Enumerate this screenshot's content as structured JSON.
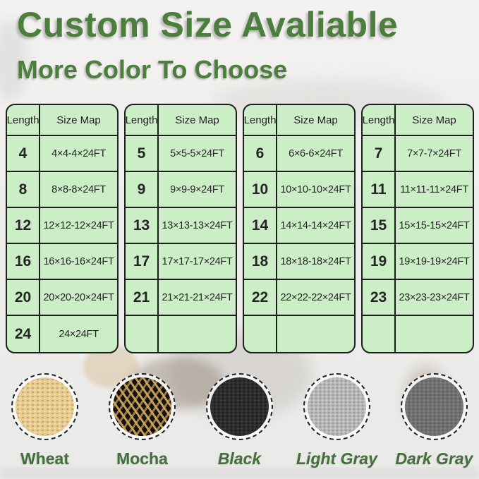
{
  "header": {
    "title": "Custom Size Avaliable",
    "subtitle": "More Color To Choose"
  },
  "accent_color": "#4c7f3e",
  "table_style": {
    "background": "#cbeec6",
    "border": "#1e1e1e"
  },
  "tables": [
    {
      "columns": [
        "Length",
        "Size Map"
      ],
      "rows": [
        {
          "len": "4",
          "size": "4×4-4×24FT"
        },
        {
          "len": "8",
          "size": "8×8-8×24FT"
        },
        {
          "len": "12",
          "size": "12×12-12×24FT"
        },
        {
          "len": "16",
          "size": "16×16-16×24FT"
        },
        {
          "len": "20",
          "size": "20×20-20×24FT"
        },
        {
          "len": "24",
          "size": "24×24FT"
        }
      ]
    },
    {
      "columns": [
        "Length",
        "Size Map"
      ],
      "rows": [
        {
          "len": "5",
          "size": "5×5-5×24FT"
        },
        {
          "len": "9",
          "size": "9×9-9×24FT"
        },
        {
          "len": "13",
          "size": "13×13-13×24FT"
        },
        {
          "len": "17",
          "size": "17×17-17×24FT"
        },
        {
          "len": "21",
          "size": "21×21-21×24FT"
        },
        {
          "len": "",
          "size": ""
        }
      ]
    },
    {
      "columns": [
        "Length",
        "Size Map"
      ],
      "rows": [
        {
          "len": "6",
          "size": "6×6-6×24FT"
        },
        {
          "len": "10",
          "size": "10×10-10×24FT"
        },
        {
          "len": "14",
          "size": "14×14-14×24FT"
        },
        {
          "len": "18",
          "size": "18×18-18×24FT"
        },
        {
          "len": "22",
          "size": "22×22-22×24FT"
        },
        {
          "len": "",
          "size": ""
        }
      ]
    },
    {
      "columns": [
        "Length",
        "Size Map"
      ],
      "rows": [
        {
          "len": "7",
          "size": "7×7-7×24FT"
        },
        {
          "len": "11",
          "size": "11×11-11×24FT"
        },
        {
          "len": "15",
          "size": "15×15-15×24FT"
        },
        {
          "len": "19",
          "size": "19×19-19×24FT"
        },
        {
          "len": "23",
          "size": "23×23-23×24FT"
        },
        {
          "len": "",
          "size": ""
        }
      ]
    }
  ],
  "colors": [
    {
      "name": "Wheat",
      "hex": "#e6cc92"
    },
    {
      "name": "Mocha",
      "hex": "#17130e",
      "accent_hex": "#cda55e"
    },
    {
      "name": "Black",
      "hex": "#2d2d2d"
    },
    {
      "name": "Light Gray",
      "hex": "#b6b6b6"
    },
    {
      "name": "Dark Gray",
      "hex": "#717171"
    }
  ]
}
